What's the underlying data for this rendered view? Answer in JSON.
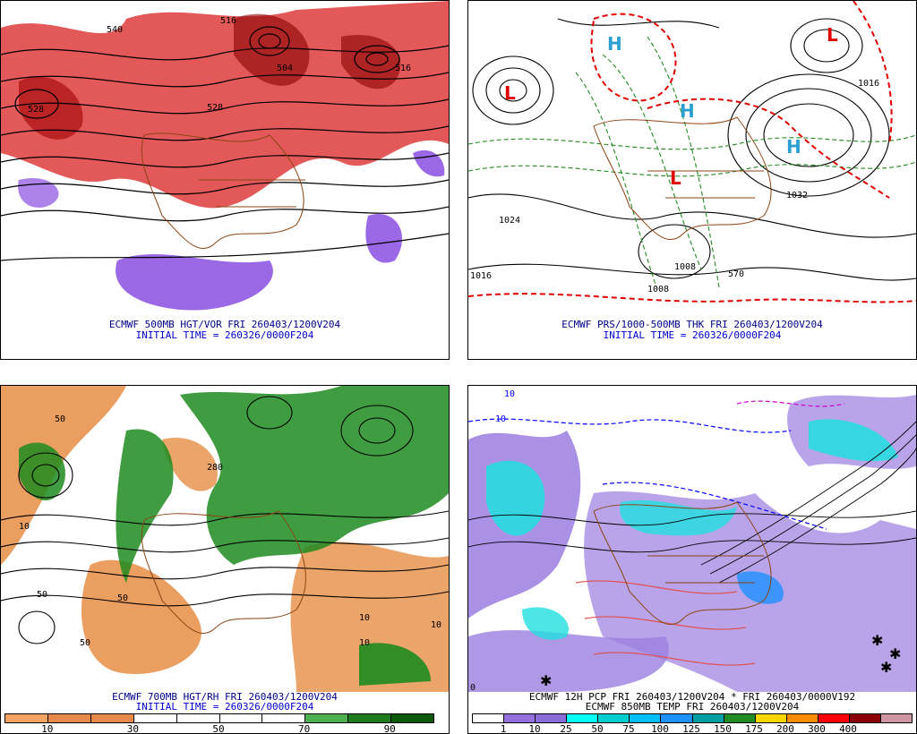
{
  "panels": [
    {
      "caption": "ECMWF 500MB HGT/VOR FRI 260403/1200V204",
      "initial": "INITIAL TIME = 260326/0000F204",
      "contours": [
        "540",
        "516",
        "504",
        "528",
        "516",
        "528"
      ]
    },
    {
      "caption": "ECMWF PRS/1000-500MB THK FRI 260403/1200V204",
      "initial": "INITIAL TIME = 260326/0000F204",
      "contours": [
        "1016",
        "1024",
        "1032",
        "1008",
        "1008",
        "570",
        "1016"
      ]
    },
    {
      "caption": "ECMWF 700MB HGT/RH FRI 260403/1200V204",
      "initial": "INITIAL TIME = 260326/0000F204",
      "contours": [
        "50",
        "10",
        "50",
        "10",
        "50",
        "10",
        "280",
        "50",
        "10"
      ]
    },
    {
      "caption": "ECMWF 12H PCP FRI 260403/1200V204 * FRI 260403/0000V192",
      "initial": "ECMWF 850MB TEMP FRI 260403/1200V204",
      "contours": [
        "10",
        "10",
        "0"
      ]
    }
  ],
  "legend_rh": {
    "ticks": [
      "10",
      "30",
      "50",
      "70",
      "90"
    ],
    "colors": [
      "#f4a460",
      "#e7894a",
      "#e7894a",
      "#ffffff",
      "#ffffff",
      "#ffffff",
      "#ffffff",
      "#4caf50",
      "#1e7b1e",
      "#0a5a0a"
    ]
  },
  "legend_pcp": {
    "ticks": [
      "1",
      "10",
      "25",
      "50",
      "75",
      "100",
      "125",
      "150",
      "175",
      "200",
      "300",
      "400"
    ],
    "colors": [
      "#ffffff",
      "#9370db",
      "#8a6cd8",
      "#00ffff",
      "#00ced1",
      "#00bfff",
      "#1e90ff",
      "#00a0a0",
      "#228b22",
      "#ffd700",
      "#ff8c00",
      "#ff0000",
      "#8b0000",
      "#cd96a0"
    ]
  },
  "colors": {
    "vor_red": "#d92020",
    "vor_purple": "#8a4fe0",
    "rh_green": "#1f8b1f",
    "rh_orange": "#e8944f",
    "pcp_purple": "#9b7ee0",
    "pcp_cyan": "#20e0e0",
    "border_brown": "#8b4513",
    "thickness_green": "#228b22",
    "thickness_red": "#e00000",
    "high_cyan": "#2aa0d0"
  }
}
